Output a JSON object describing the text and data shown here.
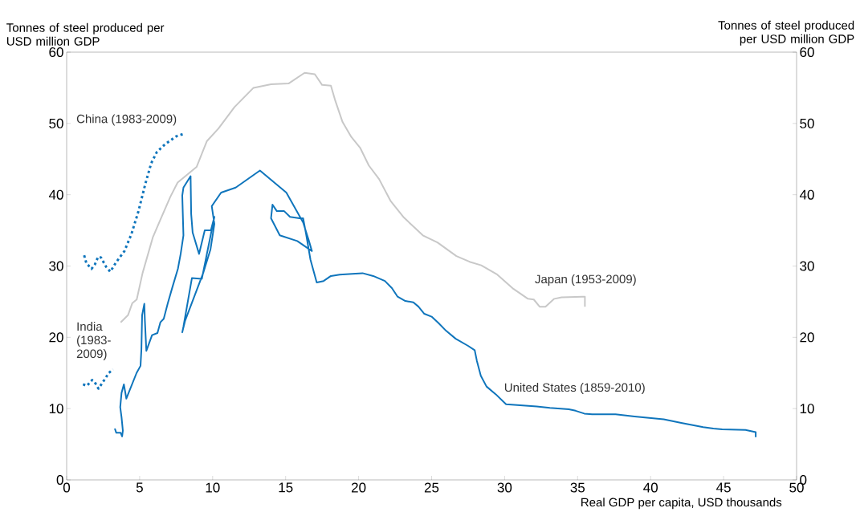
{
  "chart_data": {
    "type": "line",
    "ylabel": "Tonnes of steel produced per USD million GDP",
    "y2label": "Tonnes of steel produced per USD million GDP",
    "xlabel": "Real GDP per capita, USD thousands",
    "xlim": [
      0,
      50
    ],
    "xticks": [
      0,
      5,
      10,
      15,
      20,
      25,
      30,
      35,
      40,
      45,
      50
    ],
    "ylim": [
      0,
      60
    ],
    "yticks": [
      0,
      10,
      20,
      30,
      40,
      50,
      60
    ],
    "y2lim": [
      0,
      60
    ],
    "y2ticks": [
      0,
      10,
      20,
      30,
      40,
      50,
      60
    ],
    "grid": false,
    "series": [
      {
        "name": "Japan (1953-2009)",
        "color": "#c8c8c8",
        "line_style": "solid",
        "x": [
          3.7,
          4.2,
          4.5,
          4.8,
          5.2,
          5.9,
          6.4,
          7.1,
          7.6,
          8.9,
          9.6,
          10.4,
          11.5,
          12.8,
          14.0,
          15.2,
          16.3,
          17.0,
          17.5,
          18.1,
          18.4,
          18.9,
          19.5,
          20.1,
          20.7,
          21.4,
          22.2,
          23.1,
          24.4,
          25.4,
          26.7,
          27.6,
          28.4,
          29.5,
          30.6,
          31.6,
          32.0,
          32.4,
          32.8,
          33.4,
          33.9,
          35.3,
          35.5,
          35.5
        ],
        "values": [
          22.1,
          23.1,
          24.8,
          25.3,
          29.0,
          34.0,
          36.4,
          39.7,
          41.7,
          43.9,
          47.5,
          49.3,
          52.3,
          55.0,
          55.5,
          55.6,
          57.1,
          56.9,
          55.4,
          55.3,
          53.2,
          50.2,
          48.1,
          46.6,
          44.1,
          42.2,
          39.1,
          36.8,
          34.3,
          33.3,
          31.4,
          30.6,
          30.1,
          28.8,
          26.8,
          25.4,
          25.3,
          24.3,
          24.3,
          25.4,
          25.6,
          25.7,
          25.7,
          24.3
        ]
      },
      {
        "name": "United States (1859-2010)",
        "color": "#0f75bc",
        "line_style": "solid",
        "x": [
          3.3,
          3.4,
          3.7,
          3.8,
          3.85,
          3.76,
          3.67,
          3.76,
          3.92,
          4.09,
          4.44,
          4.79,
          5.06,
          5.12,
          5.17,
          5.32,
          5.36,
          5.46,
          5.85,
          6.22,
          6.42,
          6.65,
          6.93,
          7.24,
          7.62,
          7.81,
          8.0,
          7.92,
          8.0,
          8.49,
          8.53,
          8.63,
          9.07,
          9.46,
          9.88,
          10.12,
          9.26,
          8.58,
          8.0,
          7.92,
          8.11,
          9.35,
          9.85,
          10.12,
          9.94,
          10.58,
          11.58,
          13.24,
          15.05,
          16.2,
          16.6,
          16.8,
          15.8,
          14.6,
          14.0,
          14.1,
          14.4,
          14.9,
          15.3,
          15.95,
          16.2,
          16.4,
          16.7,
          17.13,
          17.6,
          18.1,
          18.7,
          19.56,
          20.27,
          21.0,
          21.8,
          22.28,
          22.67,
          23.2,
          23.75,
          24.1,
          24.5,
          25.0,
          25.47,
          26.0,
          26.65,
          27.5,
          27.95,
          28.1,
          28.37,
          28.76,
          29.4,
          30.1,
          32.2,
          33.1,
          34.4,
          34.86,
          35.46,
          35.99,
          37.6,
          38.9,
          40.9,
          42.1,
          43.6,
          44.3,
          44.9,
          46.5,
          47.2,
          47.2
        ],
        "values": [
          7.2,
          6.6,
          6.6,
          6.1,
          6.9,
          8.8,
          10.2,
          12.2,
          13.4,
          11.4,
          13.2,
          15.0,
          16.0,
          18.3,
          23.1,
          24.7,
          22.3,
          18.1,
          20.3,
          20.6,
          22.1,
          22.6,
          24.8,
          27.0,
          29.6,
          31.7,
          34.3,
          39.9,
          41.0,
          42.6,
          37.3,
          34.7,
          31.7,
          35.0,
          35.0,
          36.9,
          28.2,
          28.3,
          21.5,
          20.7,
          22.3,
          29.0,
          32.3,
          35.9,
          38.4,
          40.3,
          41.0,
          43.4,
          40.3,
          36.1,
          33.5,
          32.1,
          33.5,
          34.3,
          36.7,
          38.6,
          37.7,
          37.7,
          36.9,
          36.7,
          36.7,
          34.5,
          30.9,
          27.7,
          27.9,
          28.6,
          28.8,
          28.9,
          29.0,
          28.6,
          27.9,
          26.9,
          25.7,
          25.1,
          24.9,
          24.3,
          23.3,
          22.9,
          22.0,
          20.9,
          19.8,
          18.8,
          18.2,
          16.7,
          14.6,
          13.1,
          12.0,
          10.6,
          10.3,
          10.1,
          9.9,
          9.7,
          9.3,
          9.2,
          9.2,
          8.9,
          8.5,
          8.0,
          7.4,
          7.2,
          7.1,
          7.0,
          6.7,
          6.0
        ]
      },
      {
        "name": "China (1983-2009)",
        "color": "#0f75bc",
        "line_style": "dotted",
        "x": [
          1.2,
          1.35,
          1.7,
          1.93,
          2.16,
          2.35,
          2.7,
          2.99,
          3.38,
          3.96,
          4.44,
          4.92,
          5.4,
          5.79,
          6.18,
          6.75,
          7.52,
          8.11
        ],
        "values": [
          31.5,
          30.4,
          29.6,
          30.2,
          31.3,
          31.2,
          29.9,
          29.2,
          30.5,
          32.1,
          34.5,
          37.7,
          41.6,
          44.4,
          46.0,
          47.1,
          48.2,
          48.6
        ]
      },
      {
        "name": "India (1983-2009)",
        "color": "#0f75bc",
        "line_style": "dotted",
        "x": [
          1.12,
          1.39,
          1.74,
          1.9,
          2.18,
          2.51,
          2.89,
          3.18
        ],
        "values": [
          13.4,
          13.2,
          14.0,
          13.8,
          12.8,
          13.8,
          15.0,
          15.5
        ]
      }
    ]
  }
}
